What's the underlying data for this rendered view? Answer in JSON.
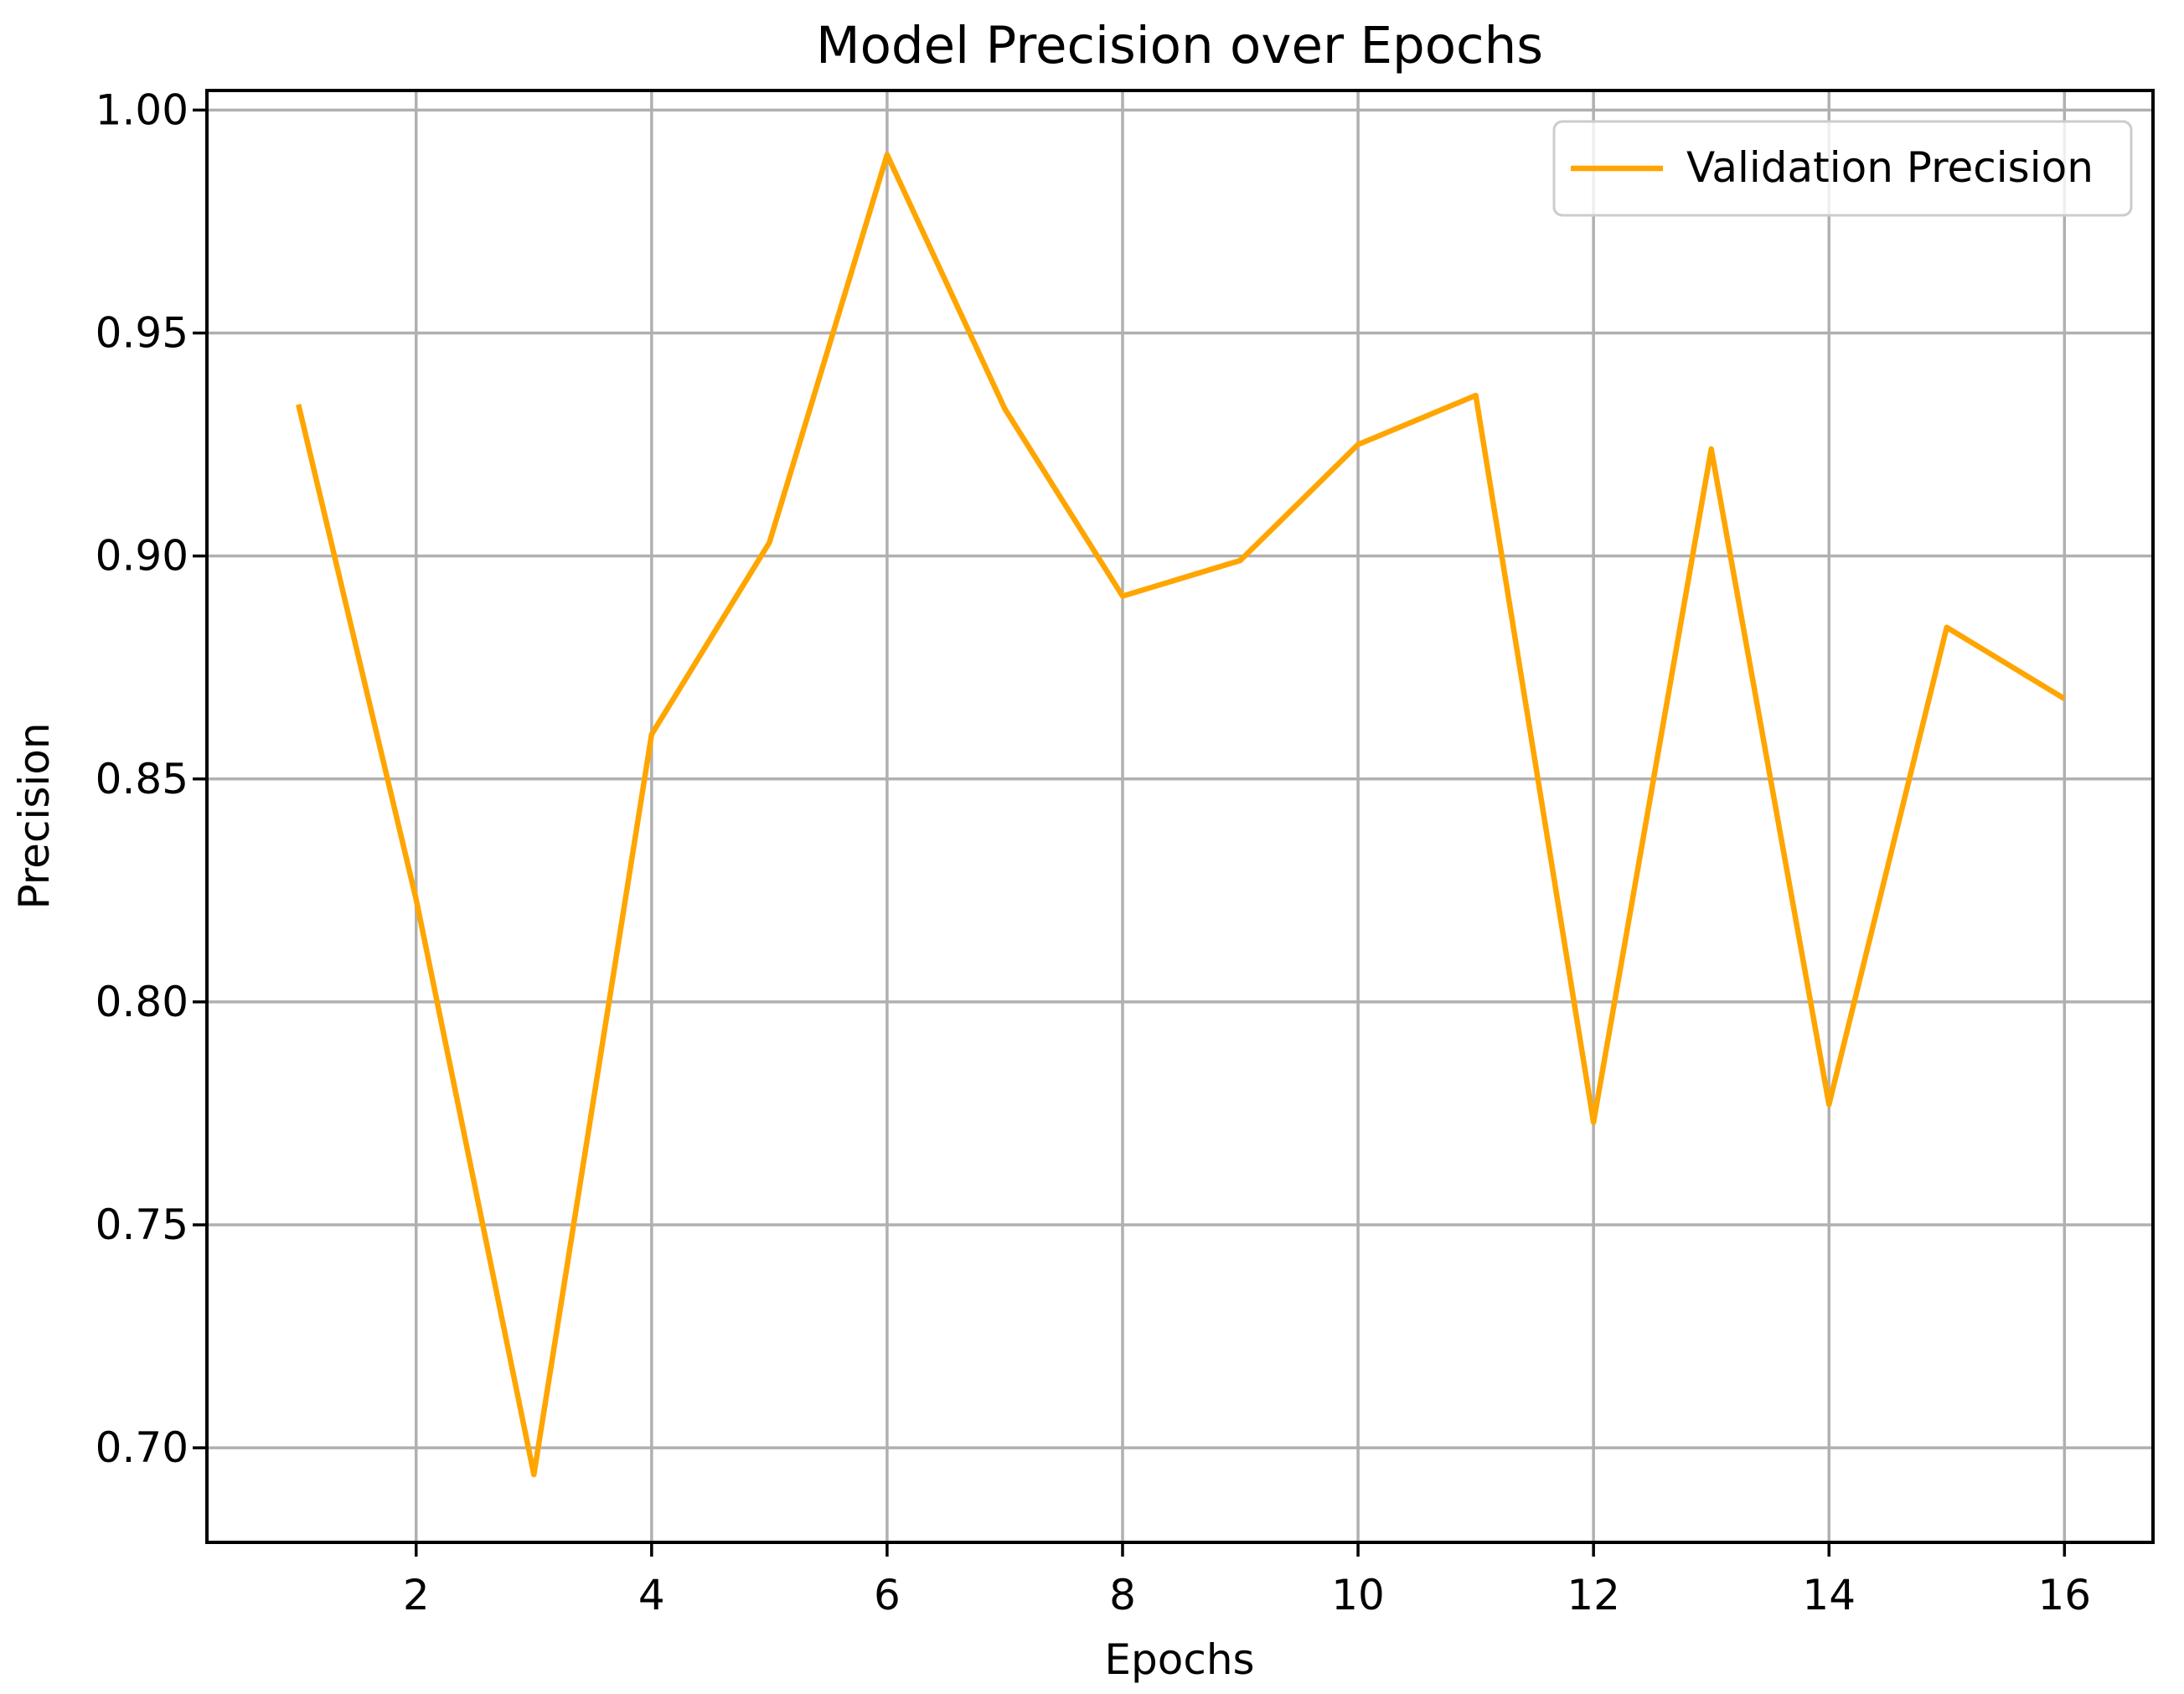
{
  "page": {
    "background": "#ffffff"
  },
  "chart_data": {
    "type": "line",
    "title": "Model Precision over Epochs",
    "xlabel": "Epochs",
    "ylabel": "Precision",
    "x": [
      1,
      2,
      3,
      4,
      5,
      6,
      7,
      8,
      9,
      10,
      11,
      12,
      13,
      14,
      15,
      16
    ],
    "series": [
      {
        "name": "Validation Precision",
        "color": "#FFA500",
        "values": [
          0.934,
          0.823,
          0.694,
          0.86,
          0.903,
          0.99,
          0.933,
          0.891,
          0.899,
          0.925,
          0.936,
          0.773,
          0.924,
          0.777,
          0.884,
          0.868
        ]
      }
    ],
    "xlim": [
      0.223,
      16.752
    ],
    "ylim": [
      0.6788,
      1.0044
    ],
    "x_ticks": [
      2,
      4,
      6,
      8,
      10,
      12,
      14,
      16
    ],
    "x_tick_labels": [
      "2",
      "4",
      "6",
      "8",
      "10",
      "12",
      "14",
      "16"
    ],
    "y_ticks": [
      0.7,
      0.75,
      0.8,
      0.85,
      0.9,
      0.95,
      1.0
    ],
    "y_tick_labels": [
      "0.70",
      "0.75",
      "0.80",
      "0.85",
      "0.90",
      "0.95",
      "1.00"
    ],
    "grid": true,
    "legend": {
      "label": "Validation Precision",
      "position": "upper right"
    }
  },
  "colors": {
    "line": "#FFA500",
    "grid": "#b0b0b0",
    "spine": "#000000",
    "text": "#000000",
    "legend_edge": "#cccccc",
    "legend_fill": "rgba(255,255,255,0.8)"
  }
}
